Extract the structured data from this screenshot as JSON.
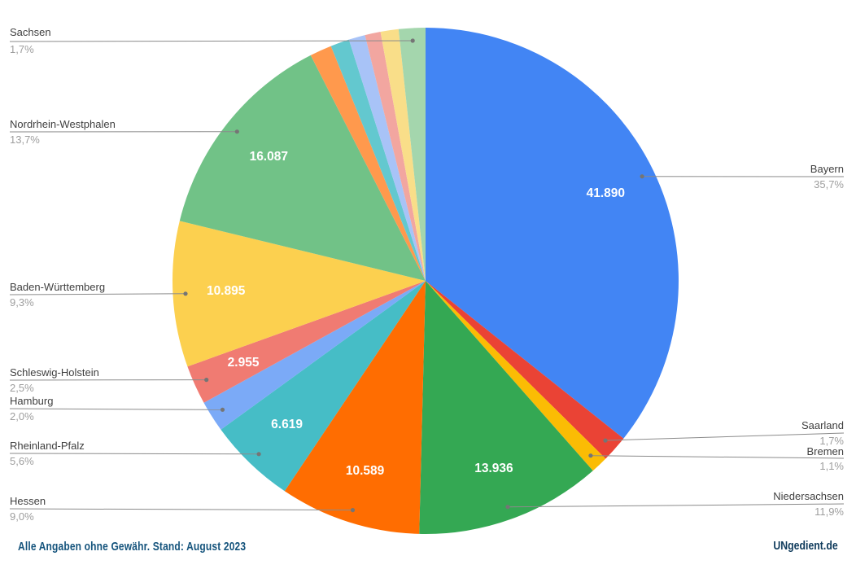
{
  "chart_data": {
    "type": "pie",
    "title": "",
    "legend": "none",
    "label_style": "callout-with-leader-lines",
    "value_labels_inside": true,
    "start_angle_deg_from_top": 0,
    "direction": "clockwise",
    "slices": [
      {
        "label": "Bayern",
        "percent": 35.7,
        "percent_label": "35,7%",
        "value_label": "41.890",
        "color": "#4285F4",
        "callout_side": "right"
      },
      {
        "label": "Saarland",
        "percent": 1.7,
        "percent_label": "1,7%",
        "color": "#EA4335",
        "callout_side": "right"
      },
      {
        "label": "Bremen",
        "percent": 1.1,
        "percent_label": "1,1%",
        "color": "#FBBC04",
        "callout_side": "right"
      },
      {
        "label": "Niedersachsen",
        "percent": 11.9,
        "percent_label": "11,9%",
        "value_label": "13.936",
        "color": "#34A853",
        "callout_side": "right"
      },
      {
        "label": "Hessen",
        "percent": 9.0,
        "percent_label": "9,0%",
        "value_label": "10.589",
        "color": "#FF6D01",
        "callout_side": "left"
      },
      {
        "label": "Rheinland-Pfalz",
        "percent": 5.6,
        "percent_label": "5,6%",
        "value_label": "6.619",
        "color": "#46BDC6",
        "callout_side": "left"
      },
      {
        "label": "Hamburg",
        "percent": 2.0,
        "percent_label": "2,0%",
        "color": "#7BAAF7",
        "callout_side": "left"
      },
      {
        "label": "Schleswig-Holstein",
        "percent": 2.5,
        "percent_label": "2,5%",
        "value_label": "2.955",
        "color": "#F07B72",
        "callout_side": "left"
      },
      {
        "label": "Baden-Württemberg",
        "percent": 9.3,
        "percent_label": "9,3%",
        "value_label": "10.895",
        "color": "#FCD04F",
        "callout_side": "left"
      },
      {
        "label": "Nordrhein-Westphalen",
        "percent": 13.7,
        "percent_label": "13,7%",
        "value_label": "16.087",
        "color": "#71C287",
        "callout_side": "left"
      },
      {
        "label": "",
        "percent": 1.4,
        "color": "#FF994D"
      },
      {
        "label": "",
        "percent": 1.2,
        "color": "#63C8CF"
      },
      {
        "label": "",
        "percent": 1.05,
        "color": "#A8C3F7"
      },
      {
        "label": "",
        "percent": 1.0,
        "color": "#F2A6A0"
      },
      {
        "label": "",
        "percent": 1.15,
        "color": "#F9DE89"
      },
      {
        "label": "Sachsen",
        "percent": 1.7,
        "percent_label": "1,7%",
        "color": "#A4D6AD",
        "callout_side": "left"
      }
    ]
  },
  "footer": {
    "left_note": "Alle Angaben ohne Gewähr. Stand: August 2023",
    "right_credit": "UNgedient.de"
  },
  "style": {
    "background": "#ffffff",
    "label_color": "#404040",
    "percent_color": "#9e9e9e",
    "leader_line_color": "#8b8b8b",
    "leader_dot_color": "#757575",
    "value_label_color": "#ffffff",
    "footer_left_color": "#14537c",
    "footer_right_color": "#0e3a5b"
  }
}
